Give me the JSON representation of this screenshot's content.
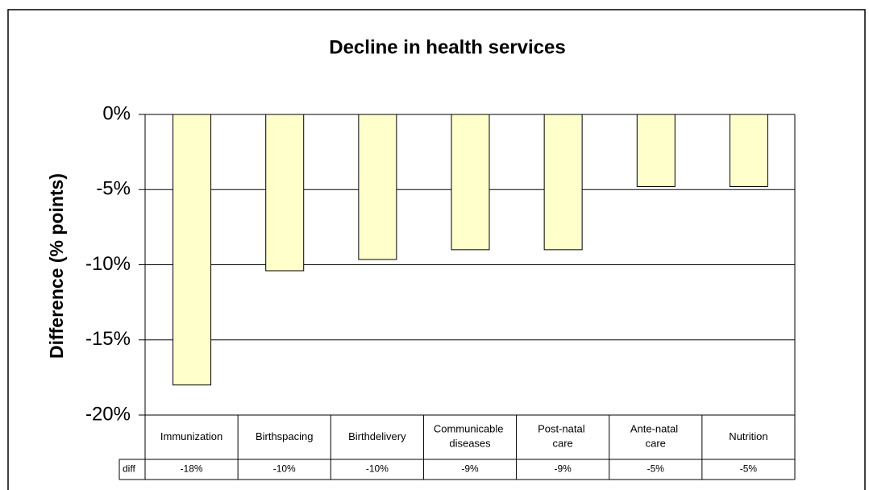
{
  "chart_data": {
    "type": "bar",
    "title": "Decline in health services",
    "y_label": "Difference (% points)",
    "categories": [
      "Immunization",
      "Birthspacing",
      "Birthdelivery",
      "Communicable diseases",
      "Post-natal care",
      "Ante-natal care",
      "Nutrition"
    ],
    "series": [
      {
        "name": "diff",
        "color": "#ffffcc",
        "values": [
          -18,
          -10.4,
          -9.65,
          -9,
          -9,
          -4.8,
          -4.8
        ],
        "value_labels": [
          "-18%",
          "-10%",
          "-10%",
          "-9%",
          "-9%",
          "-5%",
          "-5%"
        ]
      }
    ],
    "ylim": [
      -20,
      0
    ],
    "yticks": [
      {
        "value": 0,
        "label": "0%"
      },
      {
        "value": -5,
        "label": "-5%"
      },
      {
        "value": -10,
        "label": "-10%"
      },
      {
        "value": -15,
        "label": "-15%"
      },
      {
        "value": -20,
        "label": "-20%"
      }
    ],
    "grid": true
  }
}
